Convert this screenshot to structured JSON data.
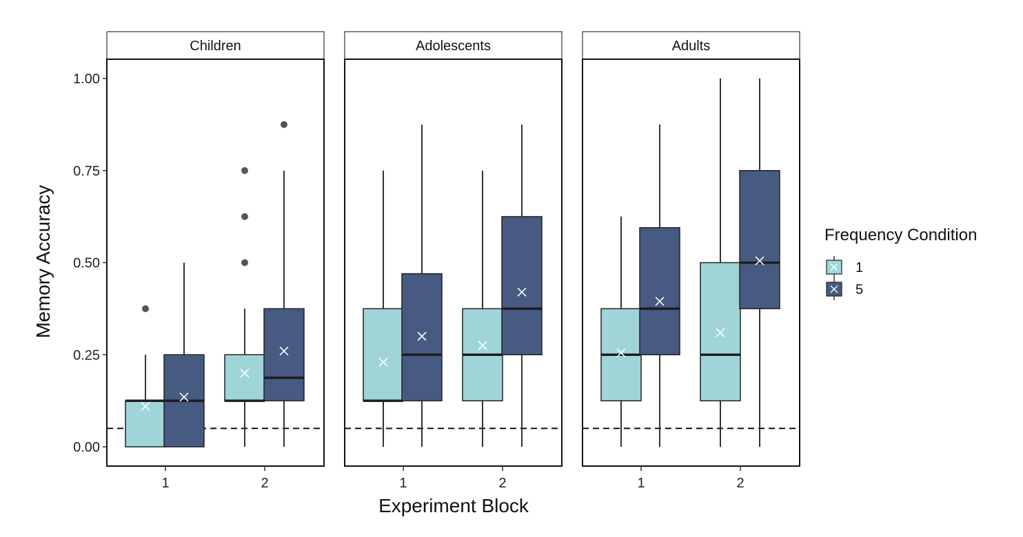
{
  "chart_data": {
    "type": "box",
    "xlabel": "Experiment Block",
    "ylabel": "Memory Accuracy",
    "ylim": [
      0,
      1.05
    ],
    "y_ticks": [
      "0.00",
      "0.25",
      "0.50",
      "0.75",
      "1.00"
    ],
    "y_tick_values": [
      0,
      0.25,
      0.5,
      0.75,
      1.0
    ],
    "x_categories": [
      "1",
      "2"
    ],
    "reference_line": {
      "y": 0.05,
      "style": "dashed"
    },
    "grid": false,
    "legend": {
      "title": "Frequency Condition",
      "placement": "right",
      "items": [
        {
          "label": "1",
          "color": "#9fd5d8"
        },
        {
          "label": "5",
          "color": "#465a82"
        }
      ]
    },
    "facets": [
      {
        "name": "Children",
        "boxes": [
          {
            "block": "1",
            "condition": "1",
            "min": 0,
            "q1": 0,
            "median": 0.125,
            "q3": 0.125,
            "max": 0.25,
            "mean": 0.11,
            "outliers": [
              0.375
            ]
          },
          {
            "block": "1",
            "condition": "5",
            "min": 0,
            "q1": 0,
            "median": 0.125,
            "q3": 0.25,
            "max": 0.5,
            "mean": 0.135,
            "outliers": []
          },
          {
            "block": "2",
            "condition": "1",
            "min": 0,
            "q1": 0.125,
            "median": 0.125,
            "q3": 0.25,
            "max": 0.375,
            "mean": 0.2,
            "outliers": [
              0.5,
              0.625,
              0.75
            ]
          },
          {
            "block": "2",
            "condition": "5",
            "min": 0,
            "q1": 0.125,
            "median": 0.1875,
            "q3": 0.375,
            "max": 0.75,
            "mean": 0.26,
            "outliers": [
              0.875
            ]
          }
        ]
      },
      {
        "name": "Adolescents",
        "boxes": [
          {
            "block": "1",
            "condition": "1",
            "min": 0,
            "q1": 0.125,
            "median": 0.125,
            "q3": 0.375,
            "max": 0.75,
            "mean": 0.23,
            "outliers": []
          },
          {
            "block": "1",
            "condition": "5",
            "min": 0,
            "q1": 0.125,
            "median": 0.25,
            "q3": 0.47,
            "max": 0.875,
            "mean": 0.3,
            "outliers": []
          },
          {
            "block": "2",
            "condition": "1",
            "min": 0,
            "q1": 0.125,
            "median": 0.25,
            "q3": 0.375,
            "max": 0.75,
            "mean": 0.275,
            "outliers": []
          },
          {
            "block": "2",
            "condition": "5",
            "min": 0,
            "q1": 0.25,
            "median": 0.375,
            "q3": 0.625,
            "max": 0.875,
            "mean": 0.42,
            "outliers": []
          }
        ]
      },
      {
        "name": "Adults",
        "boxes": [
          {
            "block": "1",
            "condition": "1",
            "min": 0,
            "q1": 0.125,
            "median": 0.25,
            "q3": 0.375,
            "max": 0.625,
            "mean": 0.255,
            "outliers": []
          },
          {
            "block": "1",
            "condition": "5",
            "min": 0,
            "q1": 0.25,
            "median": 0.375,
            "q3": 0.595,
            "max": 0.875,
            "mean": 0.395,
            "outliers": []
          },
          {
            "block": "2",
            "condition": "1",
            "min": 0,
            "q1": 0.125,
            "median": 0.25,
            "q3": 0.5,
            "max": 1.0,
            "mean": 0.31,
            "outliers": []
          },
          {
            "block": "2",
            "condition": "5",
            "min": 0,
            "q1": 0.375,
            "median": 0.5,
            "q3": 0.75,
            "max": 1.0,
            "mean": 0.505,
            "outliers": []
          }
        ]
      }
    ]
  }
}
